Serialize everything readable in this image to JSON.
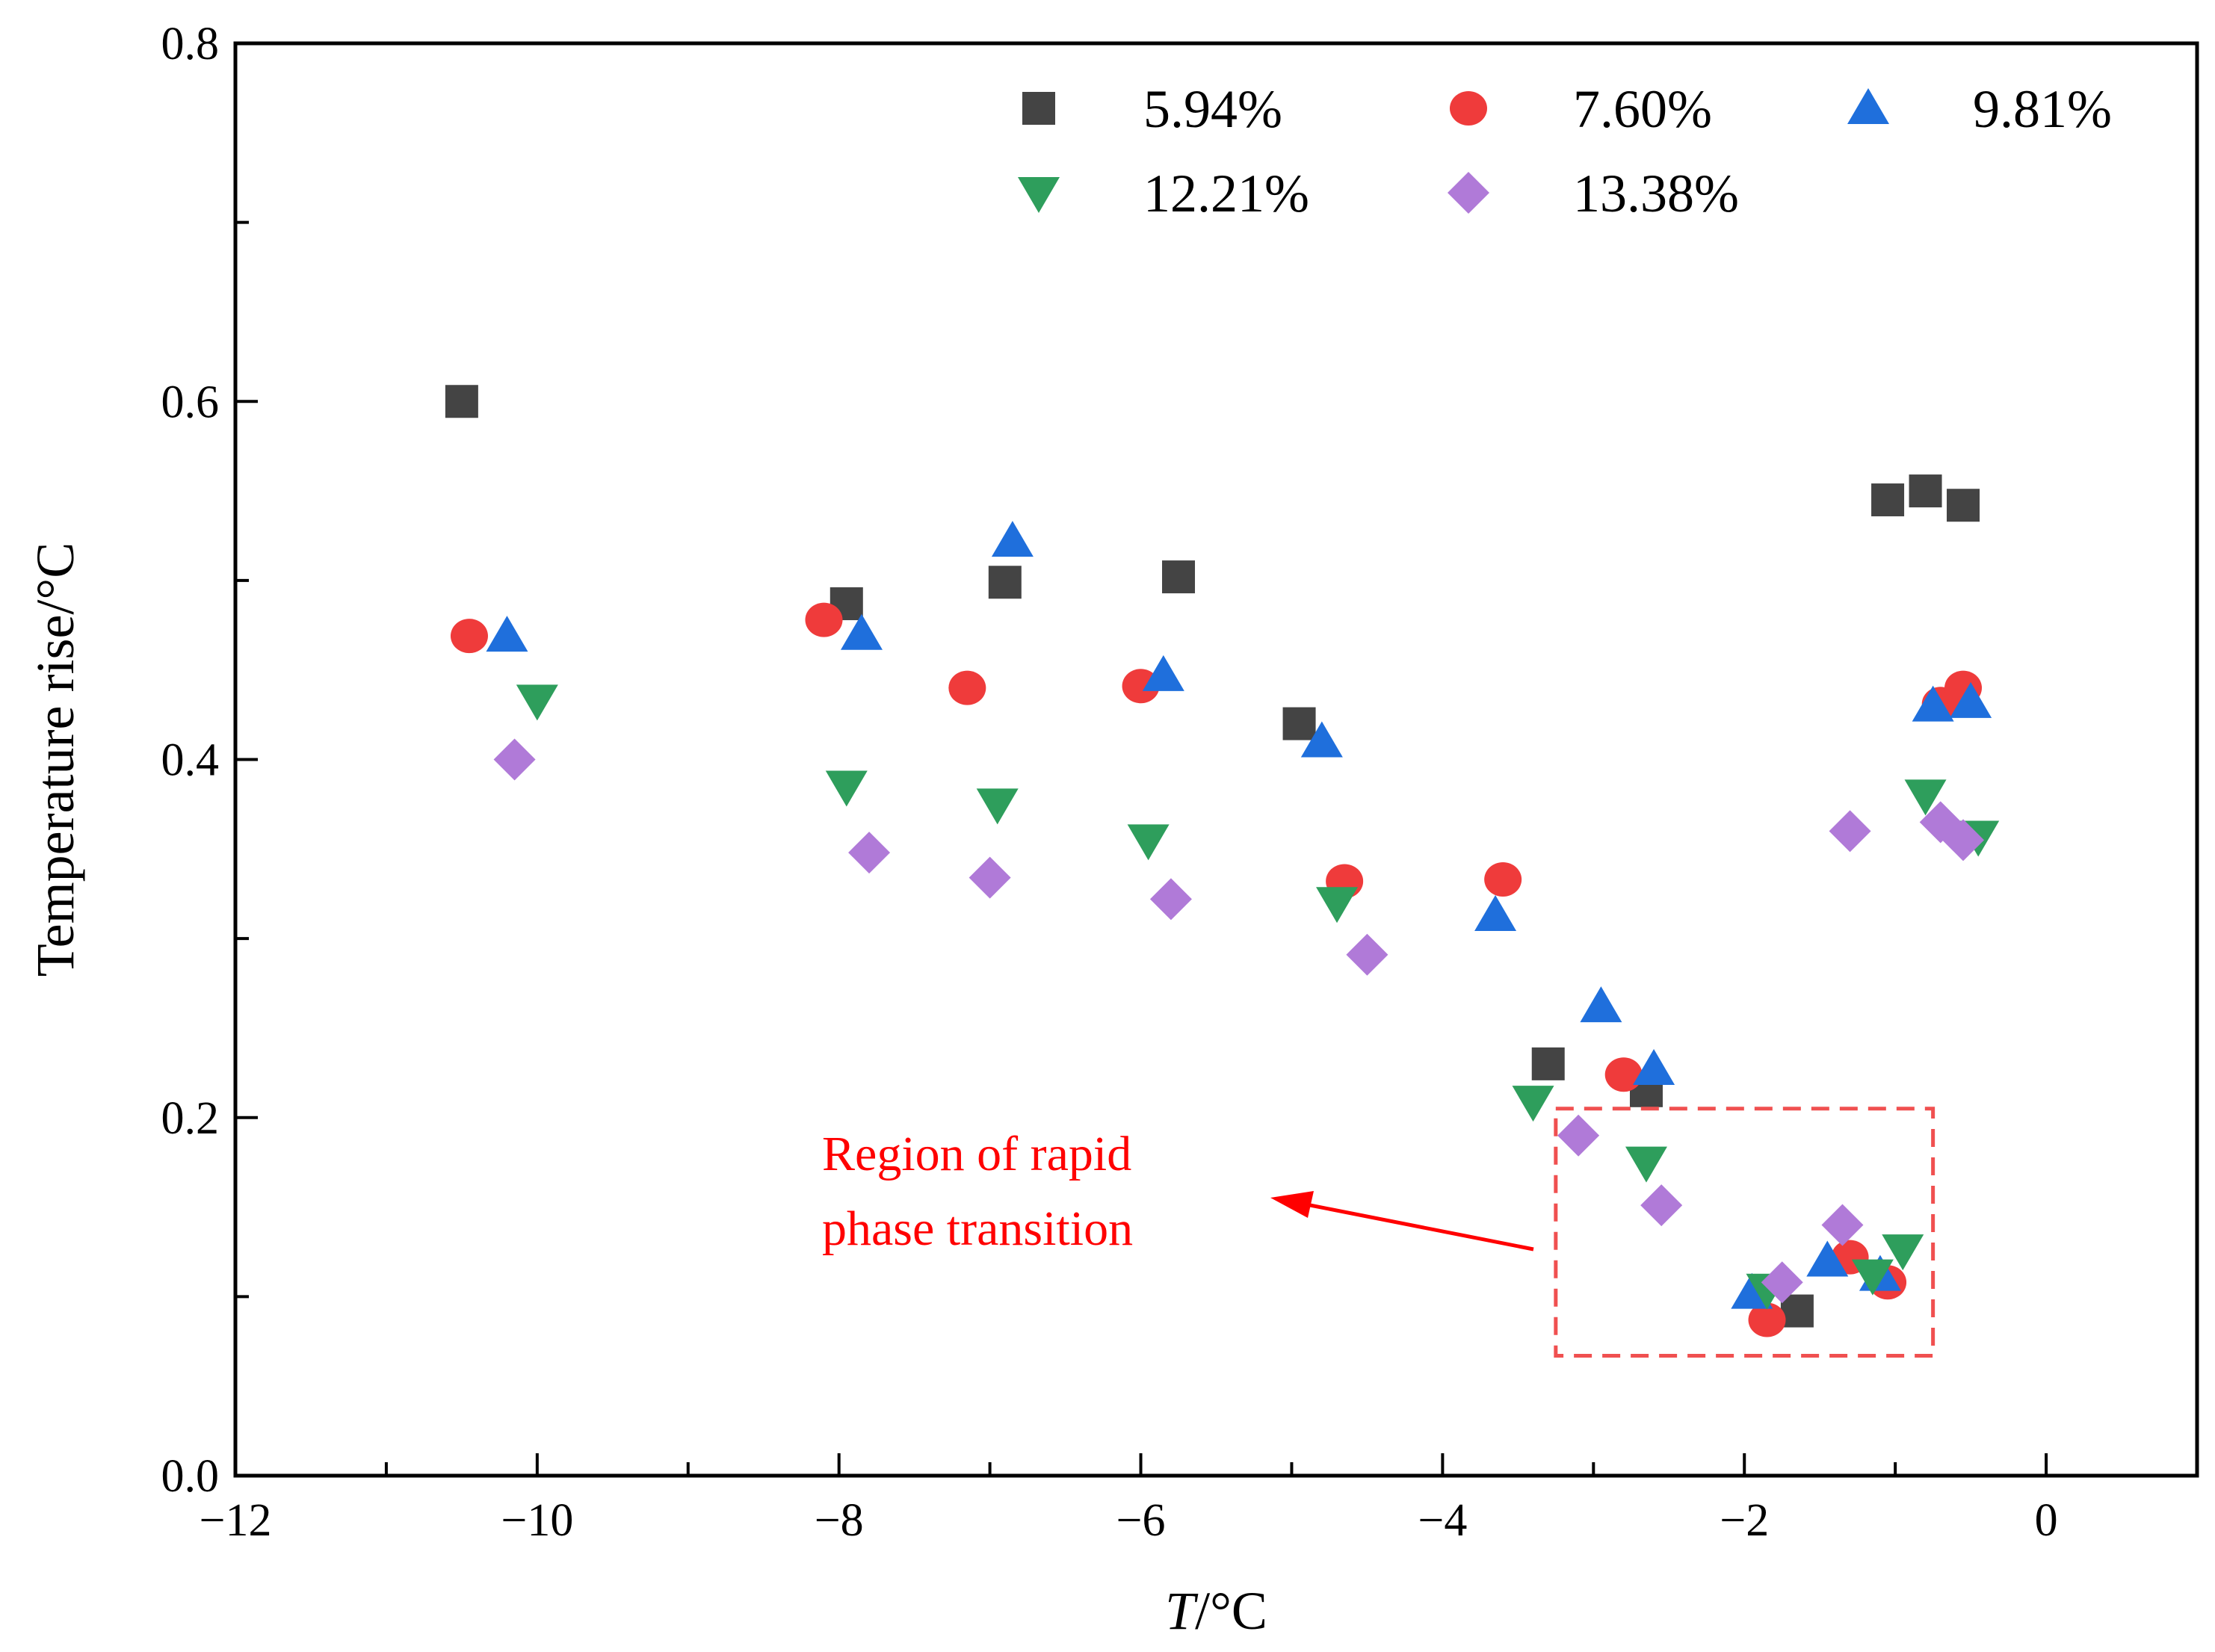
{
  "chart_data": {
    "type": "scatter",
    "title": "",
    "xlabel_italic": "T",
    "xlabel_rest": "/°C",
    "ylabel": "Temperature rise/°C",
    "xlim": [
      -12,
      1
    ],
    "ylim": [
      0,
      0.8
    ],
    "x_ticks": [
      -12,
      -10,
      -8,
      -6,
      -4,
      -2,
      0
    ],
    "x_tick_labels": [
      "−12",
      "−10",
      "−8",
      "−6",
      "−4",
      "−2",
      "0"
    ],
    "y_ticks": [
      0,
      0.2,
      0.4,
      0.6,
      0.8
    ],
    "y_tick_labels": [
      "0.0",
      "0.2",
      "0.4",
      "0.6",
      "0.8"
    ],
    "grid": false,
    "legend_position": "top-right",
    "series": [
      {
        "name": "5.94%",
        "marker": "square",
        "color": "#444444",
        "points": [
          [
            -10.5,
            0.6
          ],
          [
            -7.95,
            0.487
          ],
          [
            -6.9,
            0.499
          ],
          [
            -5.75,
            0.502
          ],
          [
            -4.95,
            0.42
          ],
          [
            -3.3,
            0.23
          ],
          [
            -2.65,
            0.215
          ],
          [
            -1.65,
            0.092
          ],
          [
            -1.05,
            0.545
          ],
          [
            -0.8,
            0.55
          ],
          [
            -0.55,
            0.542
          ]
        ]
      },
      {
        "name": "7.60%",
        "marker": "circle",
        "color": "#ef3b3b",
        "points": [
          [
            -10.45,
            0.469
          ],
          [
            -8.1,
            0.478
          ],
          [
            -7.15,
            0.44
          ],
          [
            -6.0,
            0.441
          ],
          [
            -4.65,
            0.332
          ],
          [
            -3.6,
            0.333
          ],
          [
            -2.8,
            0.224
          ],
          [
            -1.85,
            0.087
          ],
          [
            -1.3,
            0.122
          ],
          [
            -1.05,
            0.108
          ],
          [
            -0.7,
            0.431
          ],
          [
            -0.55,
            0.44
          ]
        ]
      },
      {
        "name": "9.81%",
        "marker": "triangle-up",
        "color": "#1f6fdc",
        "points": [
          [
            -10.2,
            0.469
          ],
          [
            -7.85,
            0.47
          ],
          [
            -6.85,
            0.522
          ],
          [
            -5.85,
            0.447
          ],
          [
            -4.8,
            0.41
          ],
          [
            -3.65,
            0.313
          ],
          [
            -2.95,
            0.262
          ],
          [
            -2.6,
            0.227
          ],
          [
            -1.95,
            0.102
          ],
          [
            -1.45,
            0.12
          ],
          [
            -1.1,
            0.112
          ],
          [
            -0.75,
            0.43
          ],
          [
            -0.5,
            0.432
          ]
        ]
      },
      {
        "name": "12.21%",
        "marker": "triangle-down",
        "color": "#2e9e5c",
        "points": [
          [
            -10.0,
            0.433
          ],
          [
            -7.95,
            0.385
          ],
          [
            -6.95,
            0.375
          ],
          [
            -5.95,
            0.355
          ],
          [
            -4.7,
            0.32
          ],
          [
            -3.4,
            0.209
          ],
          [
            -2.65,
            0.175
          ],
          [
            -1.85,
            0.104
          ],
          [
            -1.15,
            0.112
          ],
          [
            -0.95,
            0.126
          ],
          [
            -0.8,
            0.38
          ],
          [
            -0.45,
            0.357
          ]
        ]
      },
      {
        "name": "13.38%",
        "marker": "diamond",
        "color": "#b07ad8",
        "points": [
          [
            -10.15,
            0.4
          ],
          [
            -7.8,
            0.348
          ],
          [
            -7.0,
            0.334
          ],
          [
            -5.8,
            0.322
          ],
          [
            -4.5,
            0.291
          ],
          [
            -3.1,
            0.19
          ],
          [
            -2.55,
            0.151
          ],
          [
            -1.75,
            0.108
          ],
          [
            -1.35,
            0.14
          ],
          [
            -1.3,
            0.36
          ],
          [
            -0.7,
            0.365
          ],
          [
            -0.55,
            0.355
          ]
        ]
      }
    ],
    "annotation": {
      "lines": [
        "Region of rapid",
        "phase transition"
      ],
      "color": "#ff0000",
      "box_x_range": [
        -3.25,
        -0.75
      ],
      "box_y_range": [
        0.067,
        0.205
      ]
    }
  }
}
